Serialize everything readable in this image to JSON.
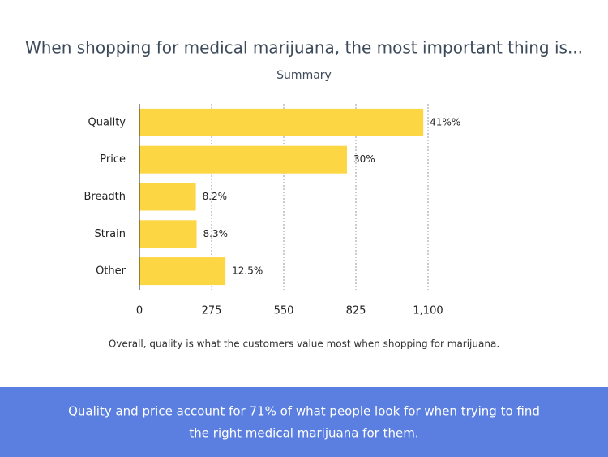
{
  "chart_data": {
    "type": "hbar",
    "title": "When shopping for medical marijuana, the most important thing is...",
    "subtitle": "Summary",
    "categories": [
      "Quality",
      "Price",
      "Breadth",
      "Strain",
      "Other"
    ],
    "values": [
      1082,
      791,
      215,
      218,
      328
    ],
    "value_labels": [
      "41%%",
      "30%",
      "8.2%",
      "8.3%",
      "12.5%"
    ],
    "color": "#fdd643",
    "xlim": [
      0,
      1100
    ],
    "xticks": [
      0,
      275,
      550,
      825,
      {
        "value": 1100,
        "label": "1,100"
      }
    ],
    "grid": true,
    "caption": "Overall, quality is what the customers value most when shopping for marijuana."
  },
  "banner": {
    "lines": [
      "Quality and price account for 71% of what people look for when trying to find",
      "the right medical marijuana for them."
    ]
  }
}
